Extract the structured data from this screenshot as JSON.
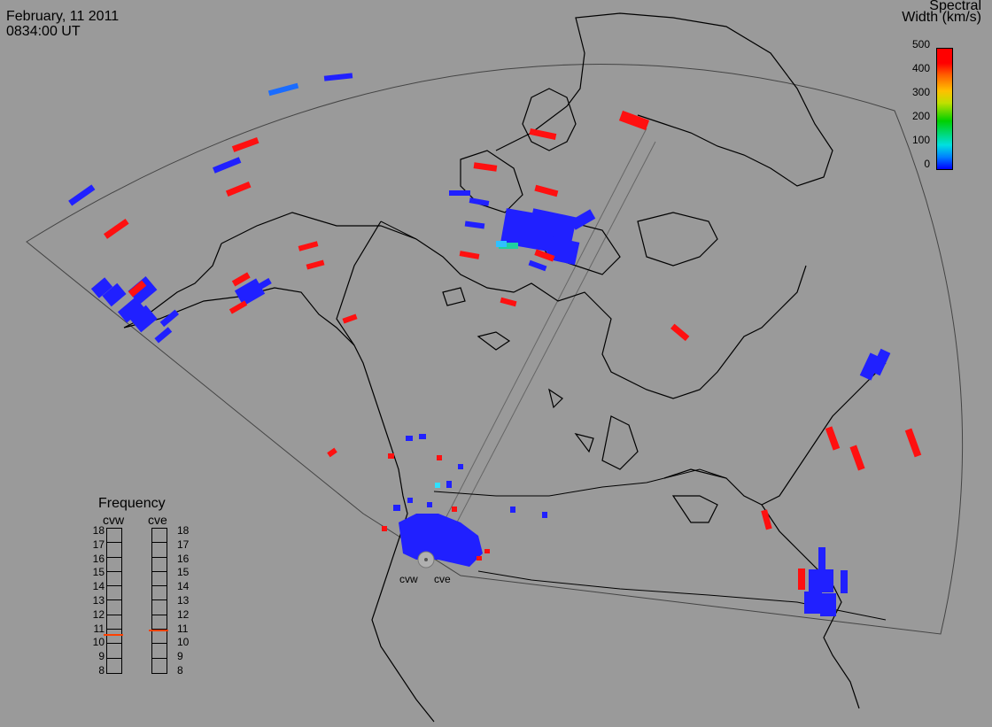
{
  "header": {
    "date": "February, 11 2011",
    "time": "0834:00 UT"
  },
  "colorbar": {
    "title_line1": "Spectral",
    "title_line2": "Width (km/s)",
    "ticks": [
      "500",
      "400",
      "300",
      "200",
      "100",
      "0"
    ]
  },
  "frequency": {
    "title": "Frequency",
    "radars": [
      {
        "name": "cvw",
        "value_mhz": 10.6
      },
      {
        "name": "cve",
        "value_mhz": 10.9
      }
    ],
    "scale": [
      "18",
      "17",
      "16",
      "15",
      "14",
      "13",
      "12",
      "11",
      "10",
      "9",
      "8"
    ]
  },
  "radar_labels": {
    "west": "cvw",
    "east": "cve"
  },
  "colors": {
    "background": "#9a9a9a",
    "low": "#0000ff",
    "mid": "#00d0d0",
    "high": "#ff0000"
  }
}
